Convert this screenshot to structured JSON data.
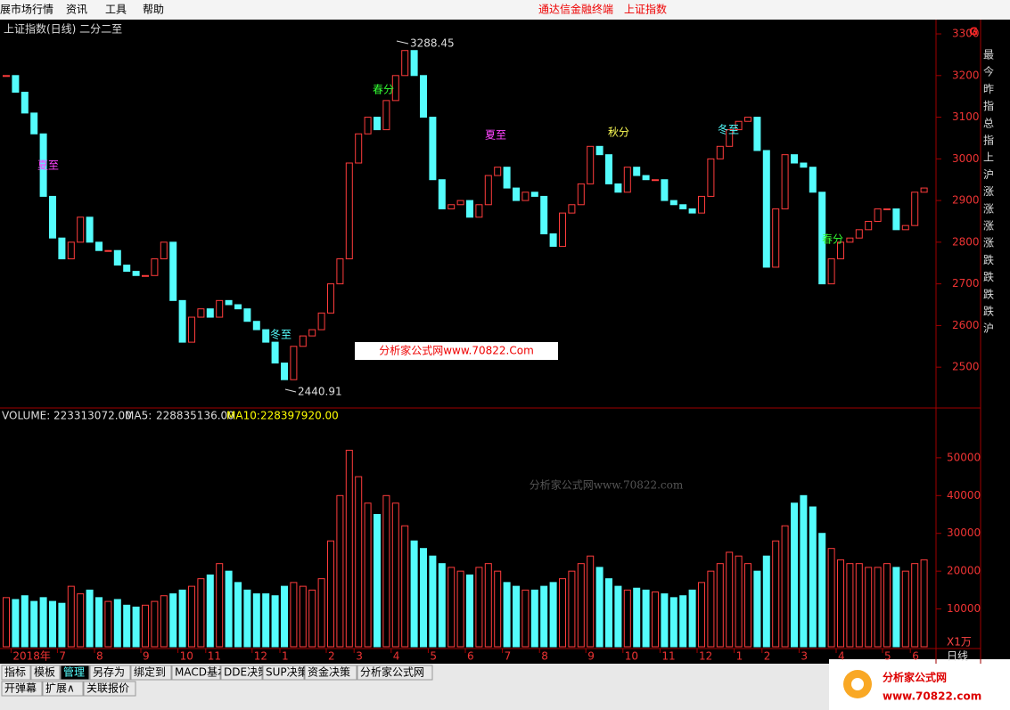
{
  "menu": {
    "items": [
      "展市场行情",
      "资讯",
      "工具",
      "帮助"
    ],
    "center": [
      "通达信金融终端",
      "上证指数"
    ]
  },
  "info_labels": [
    "最",
    "今",
    "昨",
    "指",
    "总",
    "指",
    "上",
    "沪",
    "涨",
    "涨",
    "涨",
    "涨",
    "跌",
    "跌",
    "跌",
    "跌",
    "沪"
  ],
  "info_icon": "G",
  "period": "日线",
  "tabs": {
    "row1": [
      "指标",
      "模板",
      "管理",
      "另存为",
      "绑定到",
      "MACD基本",
      "DDE决策",
      "SUP决策",
      "资金决策",
      "分析家公式网"
    ],
    "row2": [
      "开弹幕",
      "扩展∧",
      "关联报价"
    ]
  },
  "watermark": "分析家公式网www.70822.com",
  "promo": "分析家公式网www.70822.Com",
  "logo": {
    "name": "分析家公式网",
    "url": "www.70822.com"
  },
  "chart_data": [
    {
      "type": "candlestick",
      "title": "上证指数(日线) 二分二至",
      "categories": [
        null,
        "2018年",
        null,
        null,
        null,
        null,
        "7",
        null,
        null,
        null,
        "8",
        null,
        null,
        null,
        null,
        "9",
        null,
        null,
        null,
        "10",
        null,
        null,
        "11",
        null,
        null,
        null,
        null,
        "12",
        null,
        null,
        "1",
        null,
        null,
        null,
        null,
        "2",
        null,
        null,
        "3",
        null,
        null,
        null,
        "4",
        null,
        null,
        null,
        "5",
        null,
        null,
        null,
        "6",
        null,
        null,
        null,
        "7",
        null,
        null,
        null,
        "8",
        null,
        null,
        null,
        null,
        "9",
        null,
        null,
        null,
        "10",
        null,
        null,
        null,
        "11",
        null,
        null,
        null,
        "12",
        null,
        null,
        null,
        "1",
        null,
        null,
        "2",
        null,
        null,
        null,
        "3",
        null,
        null,
        null,
        "4",
        null,
        null,
        null,
        null,
        "5",
        null,
        null,
        "6",
        null
      ],
      "values": [
        3200,
        3160,
        3110,
        3060,
        2910,
        2810,
        2760,
        2800,
        2860,
        2800,
        2780,
        2780,
        2745,
        2730,
        2720,
        2720,
        2760,
        2800,
        2660,
        2560,
        2620,
        2640,
        2620,
        2660,
        2650,
        2640,
        2610,
        2590,
        2560,
        2510,
        2470,
        2550,
        2575,
        2590,
        2630,
        2700,
        2760,
        2990,
        3060,
        3100,
        3070,
        3140,
        3200,
        3260,
        3200,
        3100,
        2950,
        2880,
        2890,
        2900,
        2860,
        2890,
        2960,
        2980,
        2930,
        2900,
        2920,
        2910,
        2820,
        2790,
        2870,
        2890,
        2940,
        3030,
        3010,
        2940,
        2920,
        2980,
        2960,
        2950,
        2950,
        2900,
        2890,
        2880,
        2870,
        2910,
        3000,
        3030,
        3070,
        3090,
        3100,
        3020,
        2740,
        2880,
        3010,
        2990,
        2980,
        2920,
        2700,
        2760,
        2800,
        2810,
        2830,
        2850,
        2880,
        2880,
        2830,
        2840,
        2920,
        2930
      ],
      "ylim": [
        2402,
        3330
      ],
      "yticks": [
        3300,
        3200,
        3100,
        3000,
        2900,
        2800,
        2700,
        2600,
        2500
      ],
      "high_label": 3288.45,
      "low_label": 2440.91,
      "annotations": [
        "夏至",
        "冬至",
        "春分",
        "夏至",
        "秋分",
        "冬至",
        "春分"
      ],
      "colors": {
        "up": "#ff3c3c",
        "down": "#54fcfc"
      }
    },
    {
      "type": "bar",
      "header": [
        {
          "label": "VOLUME:",
          "value": "223313072.00"
        },
        {
          "label": "MA5:",
          "value": "228835136.00"
        },
        {
          "label": "MA10:",
          "value": "228397920.00"
        }
      ],
      "unit": "X1万",
      "values": [
        13000,
        12500,
        13500,
        12000,
        13000,
        12000,
        11500,
        16000,
        14000,
        15000,
        13000,
        12000,
        12500,
        11000,
        10500,
        11000,
        12000,
        13500,
        14000,
        15000,
        16000,
        18000,
        19000,
        22000,
        20000,
        17000,
        15000,
        14000,
        14000,
        13500,
        16000,
        17000,
        16000,
        15000,
        18000,
        28000,
        40000,
        52000,
        45000,
        38000,
        35000,
        40000,
        38000,
        32000,
        28000,
        26000,
        24000,
        22000,
        21000,
        20000,
        19000,
        21000,
        22000,
        20000,
        17000,
        16000,
        15000,
        15000,
        16000,
        17000,
        18000,
        20000,
        22000,
        24000,
        21000,
        18000,
        16000,
        15000,
        15500,
        15000,
        14500,
        14000,
        13000,
        13500,
        15000,
        17000,
        20000,
        22000,
        25000,
        24000,
        22000,
        20000,
        24000,
        28000,
        32000,
        38000,
        40000,
        37000,
        30000,
        26000,
        23000,
        22000,
        22000,
        21000,
        21000,
        22000,
        21000,
        20000,
        22000,
        23000
      ],
      "ylim": [
        0,
        62700
      ],
      "yticks": [
        50000,
        40000,
        30000,
        20000,
        10000
      ]
    }
  ]
}
